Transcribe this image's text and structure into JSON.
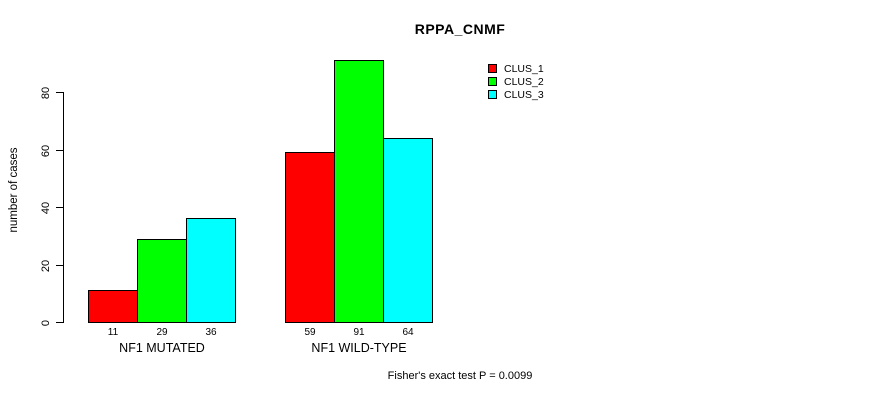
{
  "chart_data": {
    "type": "bar",
    "title": "RPPA_CNMF",
    "ylabel": "number of cases",
    "xlabel": "",
    "categories": [
      "NF1 MUTATED",
      "NF1 WILD-TYPE"
    ],
    "series": [
      {
        "name": "CLUS_1",
        "color": "#ff0000",
        "values": [
          11,
          59
        ]
      },
      {
        "name": "CLUS_2",
        "color": "#00ff00",
        "values": [
          29,
          91
        ]
      },
      {
        "name": "CLUS_3",
        "color": "#00ffff",
        "values": [
          36,
          64
        ]
      }
    ],
    "y_ticks": [
      0,
      20,
      40,
      60,
      80
    ],
    "ylim": [
      0,
      92
    ],
    "grid": false,
    "legend_position": "top-right",
    "legend_entries": [
      "CLUS_1",
      "CLUS_2",
      "CLUS_3"
    ],
    "bar_value_labels_shown": true,
    "annotation": "Fisher's exact test P = 0.0099",
    "colors": {
      "background": "#ffffff",
      "axis": "#000000",
      "text": "#000000",
      "clus_1": "#ff0000",
      "clus_2": "#00ff00",
      "clus_3": "#00ffff"
    }
  }
}
